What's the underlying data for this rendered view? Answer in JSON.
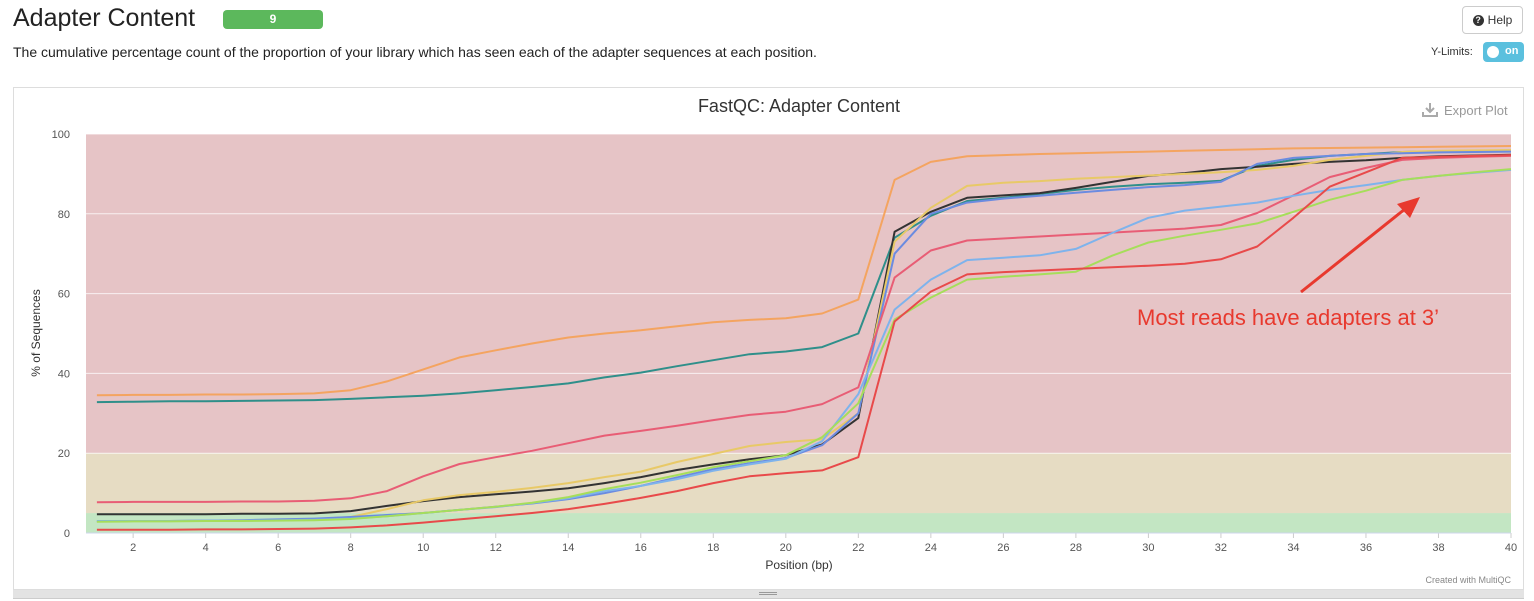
{
  "header": {
    "title": "Adapter Content",
    "badge": "9",
    "description": "The cumulative percentage count of the proportion of your library which has seen each of the adapter sequences at each position.",
    "help_label": "Help",
    "ylimits_label": "Y-Limits:",
    "toggle_label": "on"
  },
  "icons": {
    "help": "question-circle-icon",
    "export": "download-icon",
    "resize": "resize-grip-icon"
  },
  "plot": {
    "export_label": "Export Plot",
    "credit": "Created with MultiQC"
  },
  "annotation": {
    "text": "Most reads have adapters at 3’",
    "color": "#e8392e"
  },
  "colors": {
    "red_zone": "#e6c4c6",
    "yellow_zone": "#e6dcc3",
    "green_zone": "#c3e6c3",
    "badge": "#5cb85c",
    "toggle": "#5bc0de"
  },
  "chart_data": {
    "type": "line",
    "title": "FastQC: Adapter Content",
    "xlabel": "Position (bp)",
    "ylabel": "% of Sequences",
    "xlim": [
      0.7,
      40
    ],
    "ylim": [
      0,
      100
    ],
    "xticks": [
      2,
      4,
      6,
      8,
      10,
      12,
      14,
      16,
      18,
      20,
      22,
      24,
      26,
      28,
      30,
      32,
      34,
      36,
      38,
      40
    ],
    "yticks": [
      0,
      20,
      40,
      60,
      80,
      100
    ],
    "grid": true,
    "legend": "none",
    "bands": [
      {
        "from": 0,
        "to": 5,
        "color": "#c3e6c3"
      },
      {
        "from": 5,
        "to": 20,
        "color": "#e6dcc3"
      },
      {
        "from": 20,
        "to": 100,
        "color": "#e6c4c6"
      }
    ],
    "x": [
      1,
      2,
      3,
      4,
      5,
      6,
      7,
      8,
      9,
      10,
      11,
      12,
      13,
      14,
      15,
      16,
      17,
      18,
      19,
      20,
      21,
      22,
      23,
      24,
      25,
      26,
      27,
      28,
      29,
      30,
      31,
      32,
      33,
      34,
      35,
      36,
      37,
      38,
      39,
      40
    ],
    "series": [
      {
        "color": "#f4a460",
        "values": [
          34.5,
          34.6,
          34.6,
          34.7,
          34.7,
          34.8,
          35.0,
          35.8,
          38.0,
          41.0,
          44.0,
          45.8,
          47.5,
          49.0,
          50.0,
          50.8,
          51.8,
          52.8,
          53.4,
          53.8,
          55.0,
          58.5,
          88.5,
          93.0,
          94.4,
          94.7,
          95.0,
          95.2,
          95.4,
          95.6,
          95.8,
          96.0,
          96.2,
          96.4,
          96.5,
          96.6,
          96.7,
          96.8,
          96.9,
          97.0
        ]
      },
      {
        "color": "#2f8f8a",
        "values": [
          32.8,
          32.9,
          33.0,
          33.0,
          33.1,
          33.2,
          33.3,
          33.6,
          34.0,
          34.4,
          35.0,
          35.8,
          36.6,
          37.5,
          39.0,
          40.2,
          41.8,
          43.3,
          44.8,
          45.5,
          46.6,
          50.0,
          74.0,
          79.5,
          83.2,
          84.0,
          85.0,
          86.0,
          86.8,
          87.4,
          87.8,
          88.3,
          92.0,
          93.5,
          94.5,
          95.0,
          95.5,
          95.7,
          95.8,
          95.9
        ]
      },
      {
        "color": "#333333",
        "values": [
          4.7,
          4.7,
          4.7,
          4.7,
          4.8,
          4.8,
          4.9,
          5.5,
          6.8,
          8.0,
          9.0,
          9.7,
          10.4,
          11.2,
          12.5,
          14.0,
          15.8,
          17.2,
          18.5,
          19.5,
          22.2,
          28.8,
          75.5,
          80.5,
          84.0,
          84.6,
          85.2,
          86.5,
          88.0,
          89.5,
          90.2,
          91.2,
          91.8,
          92.5,
          93.0,
          93.4,
          94.0,
          94.4,
          94.6,
          94.8
        ]
      },
      {
        "color": "#e8c967",
        "values": [
          2.9,
          3.0,
          3.0,
          3.1,
          3.2,
          3.3,
          3.5,
          4.0,
          6.0,
          8.2,
          9.5,
          10.3,
          11.3,
          12.5,
          14.0,
          15.4,
          17.8,
          19.8,
          21.8,
          22.8,
          23.5,
          30.0,
          73.0,
          81.5,
          87.0,
          87.8,
          88.2,
          88.8,
          89.2,
          89.6,
          90.0,
          90.4,
          91.0,
          92.0,
          93.5,
          94.5,
          95.5,
          95.8,
          95.9,
          96.0
        ]
      },
      {
        "color": "#6b8be0",
        "values": [
          2.9,
          3.0,
          3.0,
          3.1,
          3.2,
          3.4,
          3.6,
          4.0,
          4.5,
          5.0,
          5.8,
          6.6,
          7.4,
          8.5,
          10.0,
          11.8,
          13.9,
          16.0,
          17.5,
          18.8,
          22.0,
          30.0,
          70.0,
          80.0,
          82.8,
          83.8,
          84.5,
          85.3,
          86.0,
          86.7,
          87.2,
          88.0,
          92.5,
          94.0,
          94.5,
          95.0,
          95.2,
          95.4,
          95.5,
          95.6
        ]
      },
      {
        "color": "#e85d75",
        "values": [
          7.7,
          7.8,
          7.8,
          7.8,
          7.9,
          7.9,
          8.1,
          8.7,
          10.5,
          14.2,
          17.3,
          19.0,
          20.6,
          22.5,
          24.4,
          25.6,
          26.9,
          28.3,
          29.6,
          30.4,
          32.3,
          36.5,
          64.0,
          70.8,
          73.3,
          73.8,
          74.3,
          74.8,
          75.3,
          75.8,
          76.3,
          77.2,
          80.2,
          84.6,
          89.2,
          91.5,
          93.5,
          94.0,
          94.3,
          94.5
        ]
      },
      {
        "color": "#7eb3ec",
        "values": [
          3.0,
          3.0,
          3.0,
          3.1,
          3.1,
          3.2,
          3.3,
          3.6,
          4.2,
          5.0,
          5.8,
          6.5,
          7.5,
          8.7,
          10.5,
          11.8,
          13.5,
          15.6,
          17.2,
          18.6,
          23.0,
          34.8,
          56.0,
          63.5,
          68.4,
          69.0,
          69.6,
          71.2,
          75.2,
          79.0,
          80.8,
          81.8,
          82.8,
          84.5,
          86.0,
          87.2,
          88.5,
          89.5,
          90.3,
          91.0
        ]
      },
      {
        "color": "#a6de5a",
        "values": [
          2.8,
          2.9,
          2.9,
          3.0,
          3.0,
          3.1,
          3.2,
          3.5,
          4.2,
          5.0,
          5.8,
          6.6,
          7.6,
          9.0,
          11.0,
          12.6,
          14.5,
          16.5,
          18.0,
          19.5,
          24.0,
          32.5,
          53.5,
          59.0,
          63.5,
          64.2,
          64.8,
          65.5,
          69.5,
          72.8,
          74.5,
          76.0,
          77.6,
          80.5,
          83.5,
          85.8,
          88.5,
          89.5,
          90.4,
          91.2
        ]
      },
      {
        "color": "#e84a4a",
        "values": [
          0.8,
          0.8,
          0.8,
          0.9,
          0.9,
          1.0,
          1.1,
          1.4,
          1.9,
          2.6,
          3.4,
          4.2,
          5.0,
          6.0,
          7.3,
          8.8,
          10.5,
          12.5,
          14.2,
          15.0,
          15.7,
          19.0,
          53.0,
          60.5,
          64.8,
          65.4,
          65.8,
          66.2,
          66.6,
          67.0,
          67.5,
          68.6,
          71.8,
          79.0,
          86.8,
          90.4,
          94.0,
          94.3,
          94.5,
          94.7
        ]
      }
    ]
  }
}
